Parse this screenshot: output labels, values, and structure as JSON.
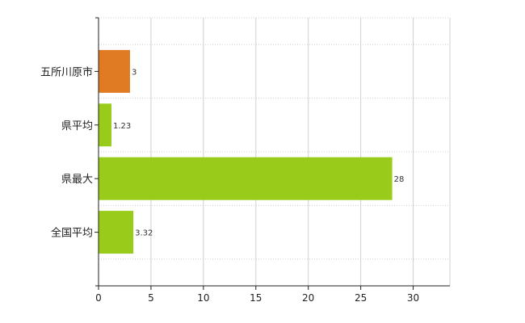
{
  "chart_data": {
    "type": "bar",
    "orientation": "horizontal",
    "categories": [
      "五所川原市",
      "県平均",
      "県最大",
      "全国平均"
    ],
    "values": [
      3,
      1.23,
      28,
      3.32
    ],
    "value_labels": [
      "3",
      "1.23",
      "28",
      "3.32"
    ],
    "bar_colors": [
      "#e07b24",
      "#99cc1a",
      "#99cc1a",
      "#99cc1a"
    ],
    "xlim": [
      0,
      33.5
    ],
    "xticks": [
      0,
      5,
      10,
      15,
      20,
      25,
      30
    ],
    "xtick_labels": [
      "0",
      "5",
      "10",
      "15",
      "20",
      "25",
      "30"
    ],
    "grid": true,
    "legend": "none"
  }
}
